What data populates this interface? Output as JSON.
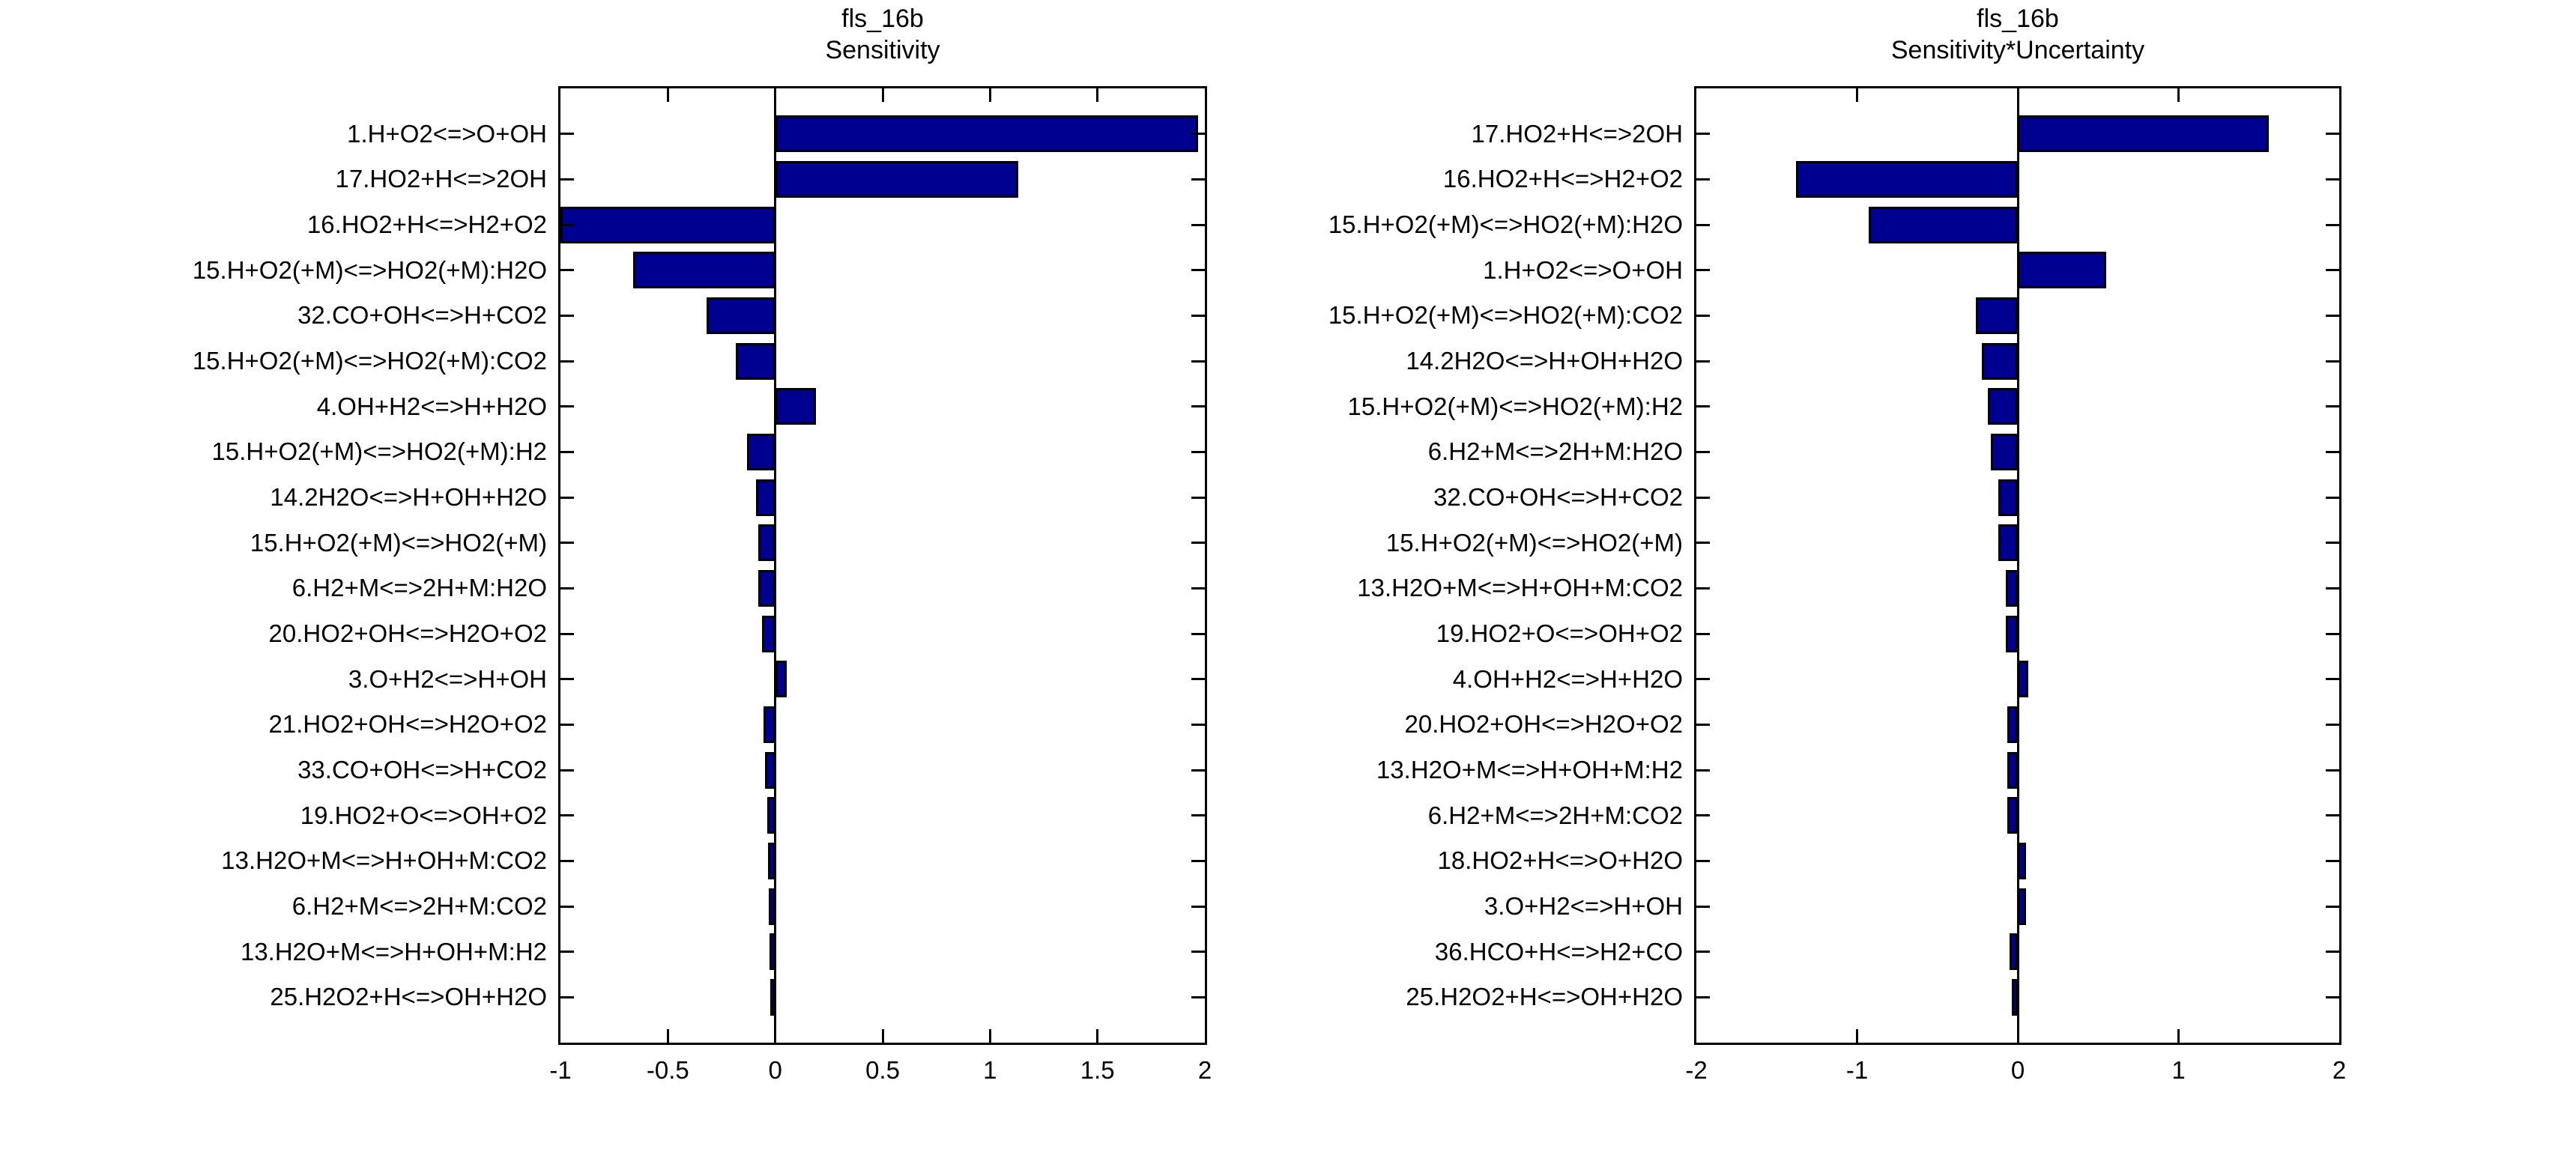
{
  "figure": {
    "background": "#ffffff",
    "text_color": "#000000"
  },
  "chart_data": [
    {
      "type": "bar",
      "orientation": "horizontal",
      "title": "fls_16b",
      "subtitle": "Sensitivity",
      "bar_color": "#000090",
      "bar_edge_color": "#000000",
      "xlim": [
        -1,
        2
      ],
      "xticks": [
        -1,
        -0.5,
        0,
        0.5,
        1,
        1.5,
        2
      ],
      "xtick_labels": [
        "-1",
        "-0.5",
        "0",
        "0.5",
        "1",
        "1.5",
        "2"
      ],
      "grid": false,
      "categories": [
        "1.H+O2<=>O+OH",
        "17.HO2+H<=>2OH",
        "16.HO2+H<=>H2+O2",
        "15.H+O2(+M)<=>HO2(+M):H2O",
        "32.CO+OH<=>H+CO2",
        "15.H+O2(+M)<=>HO2(+M):CO2",
        "4.OH+H2<=>H+H2O",
        "15.H+O2(+M)<=>HO2(+M):H2",
        "14.2H2O<=>H+OH+H2O",
        "15.H+O2(+M)<=>HO2(+M)",
        "6.H2+M<=>2H+M:H2O",
        "20.HO2+OH<=>H2O+O2",
        "3.O+H2<=>H+OH",
        "21.HO2+OH<=>H2O+O2",
        "33.CO+OH<=>H+CO2",
        "19.HO2+O<=>OH+O2",
        "13.H2O+M<=>H+OH+M:CO2",
        "6.H2+M<=>2H+M:CO2",
        "13.H2O+M<=>H+OH+M:H2",
        "25.H2O2+H<=>OH+H2O"
      ],
      "values": [
        1.97,
        1.13,
        -1.0,
        -0.66,
        -0.32,
        -0.185,
        0.19,
        -0.13,
        -0.091,
        -0.08,
        -0.078,
        -0.06,
        0.054,
        -0.055,
        -0.047,
        -0.037,
        -0.035,
        -0.029,
        -0.027,
        -0.023
      ]
    },
    {
      "type": "bar",
      "orientation": "horizontal",
      "title": "fls_16b",
      "subtitle": "Sensitivity*Uncertainty",
      "bar_color": "#000090",
      "bar_edge_color": "#000000",
      "xlim": [
        -2,
        2
      ],
      "xticks": [
        -2,
        -1,
        0,
        1,
        2
      ],
      "xtick_labels": [
        "-2",
        "-1",
        "0",
        "1",
        "2"
      ],
      "grid": false,
      "categories": [
        "17.HO2+H<=>2OH",
        "16.HO2+H<=>H2+O2",
        "15.H+O2(+M)<=>HO2(+M):H2O",
        "1.H+O2<=>O+OH",
        "15.H+O2(+M)<=>HO2(+M):CO2",
        "14.2H2O<=>H+OH+H2O",
        "15.H+O2(+M)<=>HO2(+M):H2",
        "6.H2+M<=>2H+M:H2O",
        "32.CO+OH<=>H+CO2",
        "15.H+O2(+M)<=>HO2(+M)",
        "13.H2O+M<=>H+OH+M:CO2",
        "19.HO2+O<=>OH+O2",
        "4.OH+H2<=>H+H2O",
        "20.HO2+OH<=>H2O+O2",
        "13.H2O+M<=>H+OH+M:H2",
        "6.H2+M<=>2H+M:CO2",
        "18.HO2+H<=>O+H2O",
        "3.O+H2<=>H+OH",
        "36.HCO+H<=>H2+CO",
        "25.H2O2+H<=>OH+H2O"
      ],
      "values": [
        1.56,
        -1.38,
        -0.93,
        0.55,
        -0.26,
        -0.225,
        -0.185,
        -0.17,
        -0.122,
        -0.12,
        -0.076,
        -0.073,
        0.065,
        -0.066,
        -0.065,
        -0.063,
        0.052,
        0.05,
        -0.051,
        -0.039
      ]
    }
  ]
}
